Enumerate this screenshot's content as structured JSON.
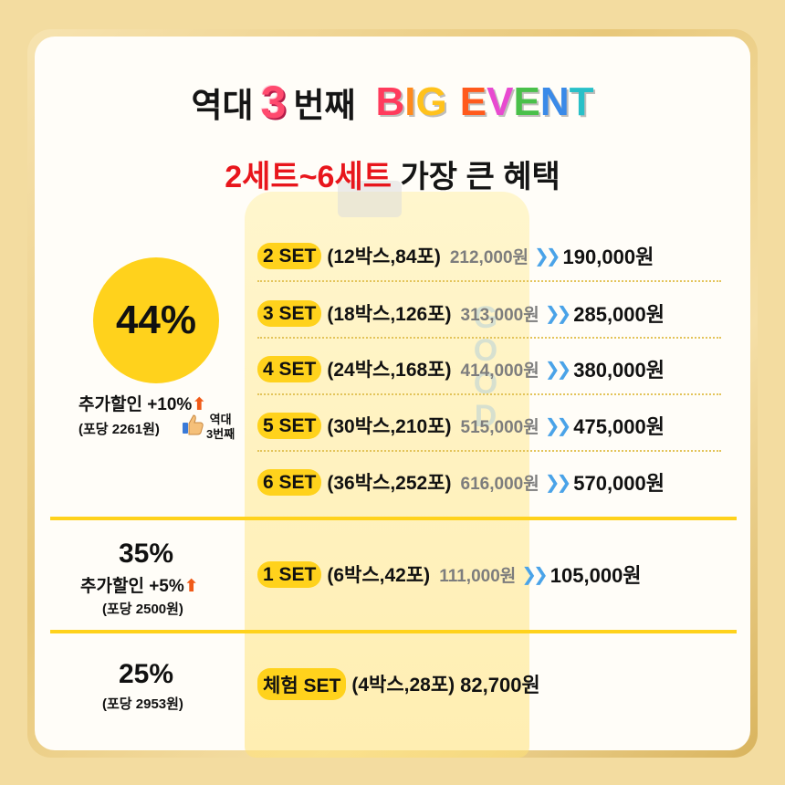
{
  "title": {
    "part1": "역대",
    "number": "3",
    "part2": "번째",
    "big_event_letters": [
      {
        "ch": "B",
        "color": "#ff3b5c"
      },
      {
        "ch": "I",
        "color": "#ff8a1c"
      },
      {
        "ch": "G",
        "color": "#ffc21c"
      },
      {
        "ch": " ",
        "color": "#ffffff"
      },
      {
        "ch": "E",
        "color": "#ff5a1c"
      },
      {
        "ch": "V",
        "color": "#e84ad0"
      },
      {
        "ch": "E",
        "color": "#4ac04a"
      },
      {
        "ch": "N",
        "color": "#3a8ae8"
      },
      {
        "ch": "T",
        "color": "#28c0c8"
      }
    ]
  },
  "subtitle": {
    "highlight": "2세트~6세트",
    "rest": " 가장 큰 혜택"
  },
  "tier44": {
    "percent": "44%",
    "extra": "추가할인 +10%",
    "per_pack": "(포당 2261원)",
    "badge_line1": "역대",
    "badge_line2": "3번째",
    "sets": [
      {
        "label": "2 SET",
        "qty": "(12박스,84포)",
        "old": "212,000원",
        "new": "190,000원"
      },
      {
        "label": "3 SET",
        "qty": "(18박스,126포)",
        "old": "313,000원",
        "new": "285,000원"
      },
      {
        "label": "4 SET",
        "qty": "(24박스,168포)",
        "old": "414,000원",
        "new": "380,000원"
      },
      {
        "label": "5 SET",
        "qty": "(30박스,210포)",
        "old": "515,000원",
        "new": "475,000원"
      },
      {
        "label": "6 SET",
        "qty": "(36박스,252포)",
        "old": "616,000원",
        "new": "570,000원"
      }
    ]
  },
  "tier35": {
    "percent": "35%",
    "extra": "추가할인 +5%",
    "per_pack": "(포당 2500원)",
    "set": {
      "label": "1 SET",
      "qty": "(6박스,42포)",
      "old": "111,000원",
      "new": "105,000원"
    }
  },
  "tier25": {
    "percent": "25%",
    "per_pack": "(포당 2953원)",
    "set": {
      "label": "체험 SET",
      "qty": "(4박스,28포)",
      "price": "82,700원"
    }
  },
  "colors": {
    "accent_yellow": "#ffd21c",
    "red": "#e8161c",
    "arrow_blue": "#4aa3e8",
    "up_arrow": "#f05a18"
  }
}
